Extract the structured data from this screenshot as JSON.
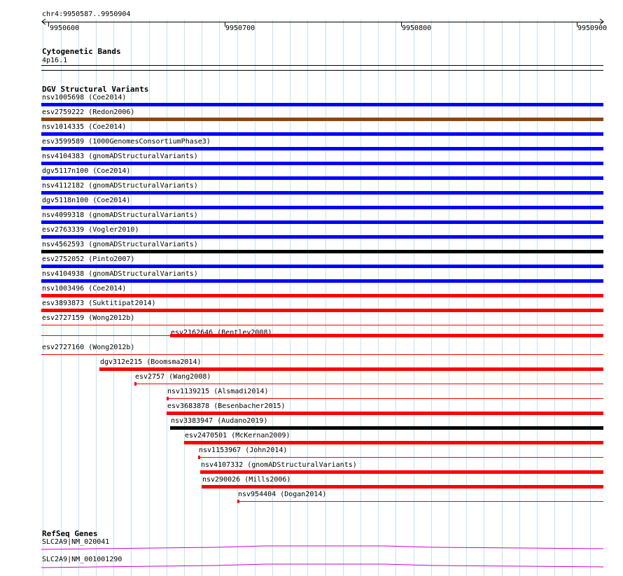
{
  "ruler": {
    "location": "chr4:9950587..9950904",
    "ticks": [
      "9950600",
      "9950700",
      "9950800",
      "9950900"
    ]
  },
  "cytoband": {
    "title": "Cytogenetic Bands",
    "band": "4p16.1"
  },
  "dgv": {
    "title": "DGV Structural Variants",
    "features": [
      {
        "label": "nsv1005698 (Coe2014)",
        "color": "#0000ff",
        "style": "full"
      },
      {
        "label": "esv2759222 (Redon2006)",
        "color": "#8b4513",
        "style": "full"
      },
      {
        "label": "nsv1014335 (Coe2014)",
        "color": "#0000ff",
        "style": "full"
      },
      {
        "label": "esv3599589 (1000GenomesConsortiumPhase3)",
        "color": "#0000ff",
        "style": "full"
      },
      {
        "label": "nsv4104383 (gnomADStructuralVariants)",
        "color": "#0000ff",
        "style": "full"
      },
      {
        "label": "dgv5117n100 (Coe2014)",
        "color": "#0000ff",
        "style": "full"
      },
      {
        "label": "nsv4112182 (gnomADStructuralVariants)",
        "color": "#0000ff",
        "style": "full"
      },
      {
        "label": "dgv5118n100 (Coe2014)",
        "color": "#0000ff",
        "style": "full"
      },
      {
        "label": "nsv4099318 (gnomADStructuralVariants)",
        "color": "#0000ff",
        "style": "full"
      },
      {
        "label": "esv2763339 (Vogler2010)",
        "color": "#0000ff",
        "style": "full"
      },
      {
        "label": "nsv4562593 (gnomADStructuralVariants)",
        "color": "#000000",
        "style": "full"
      },
      {
        "label": "esv2752052 (Pinto2007)",
        "color": "#0000ff",
        "style": "full"
      },
      {
        "label": "nsv4104938 (gnomADStructuralVariants)",
        "color": "#0000ff",
        "style": "full"
      },
      {
        "label": "nsv1003496 (Coe2014)",
        "color": "#ff0000",
        "style": "full"
      },
      {
        "label": "esv3893873 (Suktitipat2014)",
        "color": "#ff0000",
        "style": "full"
      },
      {
        "label": "esv2727159 (Wong2012b)",
        "color": "#ff0000",
        "style": "thin"
      },
      {
        "label": "esv2162646 (Bentley2008)",
        "color": "#ff0000",
        "style": "thin-then-thick",
        "start": 9950669
      },
      {
        "label": "esv2727160 (Wong2012b)",
        "color": "#ff0000",
        "style": "thin"
      },
      {
        "label": "dgv312e215 (Boomsma2014)",
        "color": "#ff0000",
        "style": "full",
        "start": 9950629
      },
      {
        "label": "esv2757 (Wang2008)",
        "color": "#ff0000",
        "style": "mark",
        "start": 9950649
      },
      {
        "label": "nsv1139215 (Alsmadi2014)",
        "color": "#ff0000",
        "style": "mark",
        "start": 9950667
      },
      {
        "label": "esv3683878 (Besenbacher2015)",
        "color": "#ff0000",
        "style": "full",
        "start": 9950667
      },
      {
        "label": "nsv3383947 (Audano2019)",
        "color": "#000000",
        "style": "full",
        "start": 9950669
      },
      {
        "label": "esv2470501 (McKernan2009)",
        "color": "#ff0000",
        "style": "full",
        "start": 9950677
      },
      {
        "label": "nsv1153967 (John2014)",
        "color": "#ff0000",
        "style": "mark",
        "start": 9950685
      },
      {
        "label": "nsv4107332 (gnomADStructuralVariants)",
        "color": "#ff0000",
        "style": "full",
        "start": 9950686
      },
      {
        "label": "nsv290026 (Mills2006)",
        "color": "#ff0000",
        "style": "full",
        "start": 9950687
      },
      {
        "label": "nsv954404 (Dogan2014)",
        "color": "#ff0000",
        "style": "mark",
        "start": 9950707
      }
    ]
  },
  "refseq": {
    "title": "RefSeq Genes",
    "genes": [
      {
        "label": "SLC2A9|NM_020041",
        "color": "#cc00cc"
      },
      {
        "label": "SLC2A9|NM_001001290",
        "color": "#cc00cc"
      }
    ]
  }
}
